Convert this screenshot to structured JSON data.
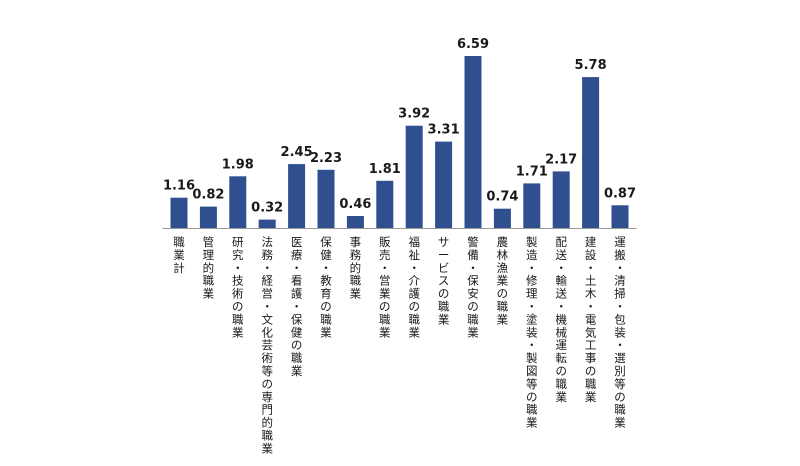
{
  "chart_data": {
    "type": "bar",
    "categories": [
      "職業計",
      "管理的職業",
      "研究・技術の職業",
      "法務・経営・文化芸術等の専門的職業",
      "医療・看護・保健の職業",
      "保健・教育の職業",
      "事務的職業",
      "販売・営業の職業",
      "福祉・介護の職業",
      "サービスの職業",
      "警備・保安の職業",
      "農林漁業の職業",
      "製造・修理・塗装・製図等の職業",
      "配送・輸送・機械運転の職業",
      "建設・土木・電気工事の職業",
      "運搬・清掃・包装・選別等の職業"
    ],
    "values": [
      1.16,
      0.82,
      1.98,
      0.32,
      2.45,
      2.23,
      0.46,
      1.81,
      3.92,
      3.31,
      6.59,
      0.74,
      1.71,
      2.17,
      5.78,
      0.87
    ],
    "value_labels": [
      "1.16",
      "0.82",
      "1.98",
      "0.32",
      "2.45",
      "2.23",
      "0.46",
      "1.81",
      "3.92",
      "3.31",
      "6.59",
      "0.74",
      "1.71",
      "2.17",
      "5.78",
      "0.87"
    ],
    "ylim": [
      0,
      6.59
    ],
    "grid": false,
    "colors": {
      "bar": "#2f4f8f",
      "axis": "#999999",
      "text": "#1a1a1a"
    }
  }
}
